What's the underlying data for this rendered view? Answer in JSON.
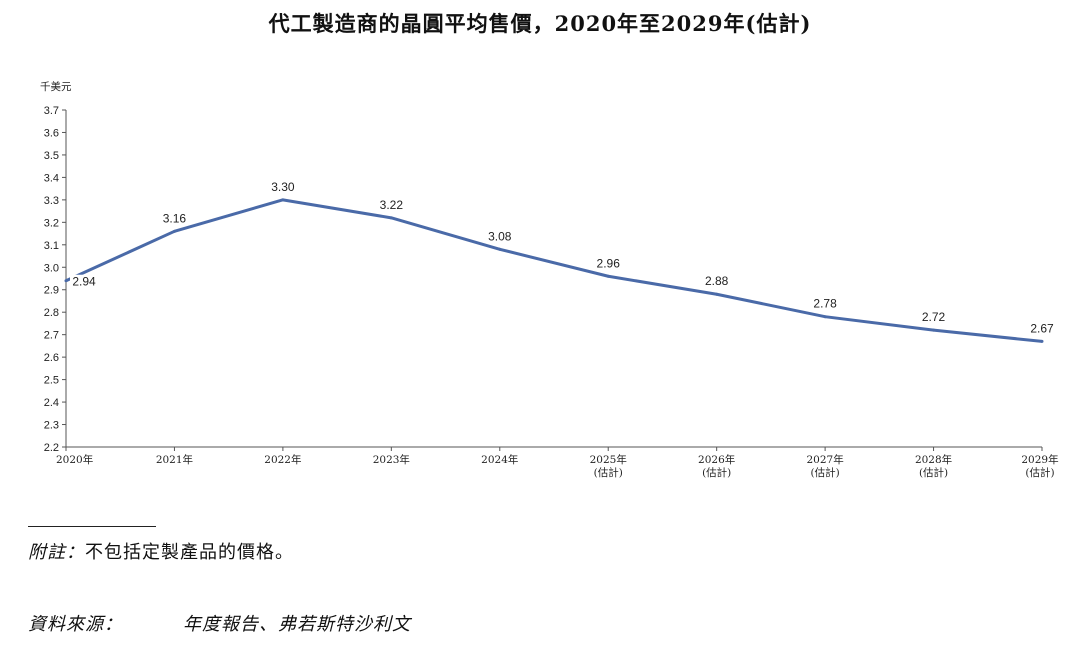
{
  "title": "代工製造商的晶圓平均售價，2020年至2029年(估計)",
  "chart_data": {
    "type": "line",
    "ylabel": "千美元",
    "ylim": [
      2.2,
      3.7
    ],
    "yticks": [
      "2.2",
      "2.3",
      "2.4",
      "2.5",
      "2.6",
      "2.7",
      "2.8",
      "2.9",
      "3.0",
      "3.1",
      "3.2",
      "3.3",
      "3.4",
      "3.5",
      "3.6",
      "3.7"
    ],
    "categories": [
      "2020年",
      "2021年",
      "2022年",
      "2023年",
      "2024年",
      "2025年\n(估計)",
      "2026年\n(估計)",
      "2027年\n(估計)",
      "2028年\n(估計)",
      "2029年\n(估計)"
    ],
    "series": [
      {
        "values": [
          2.94,
          3.16,
          3.3,
          3.22,
          3.08,
          2.96,
          2.88,
          2.78,
          2.72,
          2.67
        ],
        "data_labels": [
          "2.94",
          "3.16",
          "3.30",
          "3.22",
          "3.08",
          "2.96",
          "2.88",
          "2.78",
          "2.72",
          "2.67"
        ]
      }
    ],
    "line_color": "#4a6aa8",
    "grid": false
  },
  "footnote": {
    "note_label": "附註：",
    "note_text": "不包括定製產品的價格。",
    "source_label": "資料來源：",
    "source_text": "年度報告、弗若斯特沙利文"
  }
}
